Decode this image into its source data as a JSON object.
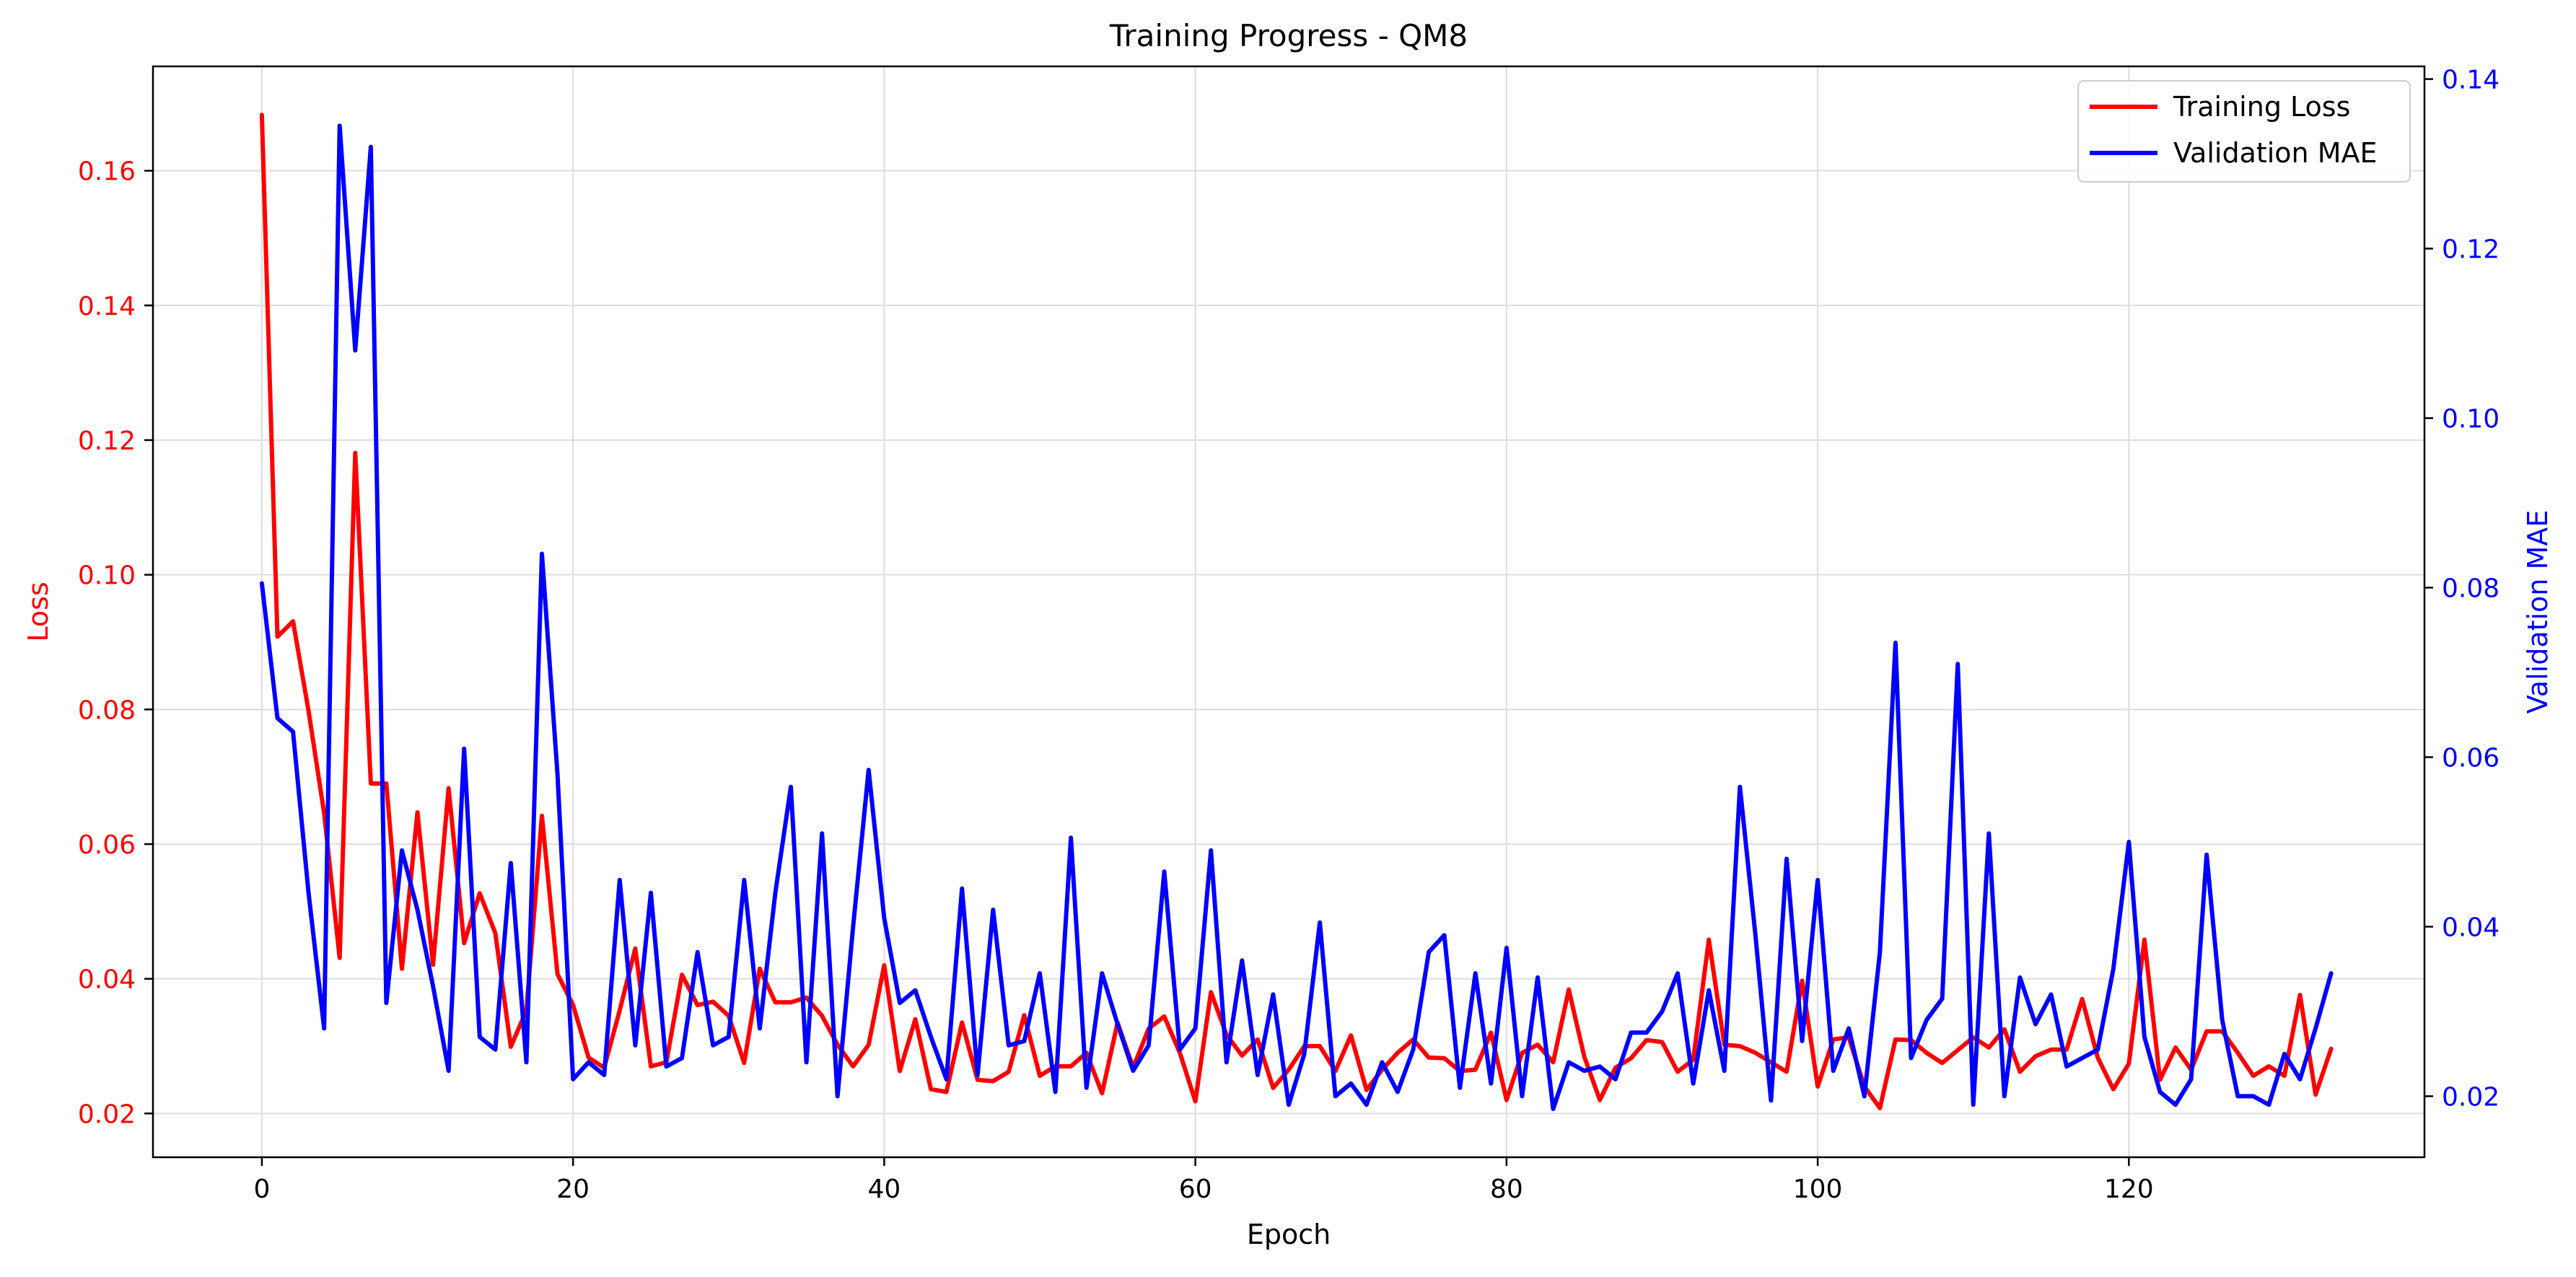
{
  "chart_data": {
    "type": "line",
    "title": "Training Progress - QM8",
    "xlabel": "Epoch",
    "ylabel": "Loss",
    "y2label": "Validation MAE",
    "xlim": [
      -7,
      139
    ],
    "ylim": [
      0.0135,
      0.1755
    ],
    "y2lim": [
      0.0128,
      0.1415
    ],
    "xticks": [
      0,
      20,
      40,
      60,
      80,
      100,
      120
    ],
    "yticks": [
      0.02,
      0.04,
      0.06,
      0.08,
      0.1,
      0.12,
      0.14,
      0.16
    ],
    "y2ticks": [
      0.02,
      0.04,
      0.06,
      0.08,
      0.1,
      0.12,
      0.14
    ],
    "grid": true,
    "legend_position": "top-right",
    "series": [
      {
        "name": "Training Loss",
        "color": "#ff0000",
        "axis": "left",
        "values": [
          0.1683,
          0.0908,
          0.0931,
          0.0798,
          0.0646,
          0.0431,
          0.1181,
          0.069,
          0.069,
          0.0415,
          0.0647,
          0.0421,
          0.0683,
          0.0453,
          0.0527,
          0.0468,
          0.0299,
          0.0353,
          0.0642,
          0.0407,
          0.0361,
          0.0283,
          0.0268,
          0.0353,
          0.0445,
          0.027,
          0.0276,
          0.0406,
          0.0361,
          0.0366,
          0.0345,
          0.0275,
          0.0415,
          0.0365,
          0.0365,
          0.0372,
          0.0345,
          0.0302,
          0.027,
          0.0302,
          0.042,
          0.0263,
          0.034,
          0.0236,
          0.0232,
          0.0335,
          0.025,
          0.0248,
          0.0262,
          0.0346,
          0.0256,
          0.027,
          0.027,
          0.029,
          0.023,
          0.0335,
          0.0268,
          0.0326,
          0.0344,
          0.029,
          0.0218,
          0.038,
          0.0317,
          0.0286,
          0.031,
          0.0238,
          0.0265,
          0.03,
          0.03,
          0.0263,
          0.0316,
          0.0235,
          0.0265,
          0.029,
          0.031,
          0.0283,
          0.0282,
          0.0263,
          0.0265,
          0.032,
          0.022,
          0.029,
          0.0302,
          0.0276,
          0.0384,
          0.0284,
          0.022,
          0.0268,
          0.0282,
          0.0309,
          0.0306,
          0.0262,
          0.028,
          0.0458,
          0.0302,
          0.03,
          0.029,
          0.0276,
          0.0262,
          0.0397,
          0.024,
          0.031,
          0.0313,
          0.024,
          0.0208,
          0.031,
          0.0309,
          0.029,
          0.0275,
          0.0294,
          0.0313,
          0.0298,
          0.0325,
          0.0262,
          0.0285,
          0.0295,
          0.0295,
          0.037,
          0.0283,
          0.0236,
          0.0274,
          0.0458,
          0.025,
          0.0298,
          0.0265,
          0.0322,
          0.0322,
          0.029,
          0.0256,
          0.027,
          0.0256,
          0.0376,
          0.0228,
          0.0296
        ]
      },
      {
        "name": "Validation MAE",
        "color": "#0000ff",
        "axis": "right",
        "values": [
          0.0805,
          0.0646,
          0.063,
          0.044,
          0.028,
          0.1345,
          0.108,
          0.132,
          0.031,
          0.049,
          0.042,
          0.033,
          0.023,
          0.061,
          0.027,
          0.0255,
          0.0475,
          0.024,
          0.084,
          0.058,
          0.022,
          0.024,
          0.0225,
          0.0455,
          0.026,
          0.044,
          0.0235,
          0.0245,
          0.037,
          0.026,
          0.027,
          0.0455,
          0.028,
          0.044,
          0.0565,
          0.024,
          0.051,
          0.02,
          0.04,
          0.0585,
          0.041,
          0.031,
          0.0325,
          0.027,
          0.022,
          0.0445,
          0.0225,
          0.042,
          0.026,
          0.0265,
          0.0345,
          0.0205,
          0.0505,
          0.021,
          0.0345,
          0.0285,
          0.023,
          0.026,
          0.0465,
          0.0255,
          0.028,
          0.049,
          0.024,
          0.036,
          0.0225,
          0.032,
          0.019,
          0.025,
          0.0405,
          0.02,
          0.0215,
          0.019,
          0.024,
          0.0205,
          0.0255,
          0.037,
          0.039,
          0.021,
          0.0345,
          0.0215,
          0.0375,
          0.02,
          0.034,
          0.0185,
          0.024,
          0.023,
          0.0235,
          0.022,
          0.0275,
          0.0275,
          0.03,
          0.0345,
          0.0215,
          0.0325,
          0.023,
          0.0565,
          0.039,
          0.0195,
          0.048,
          0.0265,
          0.0455,
          0.023,
          0.028,
          0.02,
          0.037,
          0.0735,
          0.0245,
          0.029,
          0.0315,
          0.071,
          0.019,
          0.051,
          0.02,
          0.034,
          0.0285,
          0.032,
          0.0235,
          0.0245,
          0.0255,
          0.035,
          0.05,
          0.027,
          0.0205,
          0.019,
          0.022,
          0.0485,
          0.029,
          0.02,
          0.02,
          0.019,
          0.025,
          0.022,
          0.028,
          0.0345
        ]
      }
    ]
  }
}
